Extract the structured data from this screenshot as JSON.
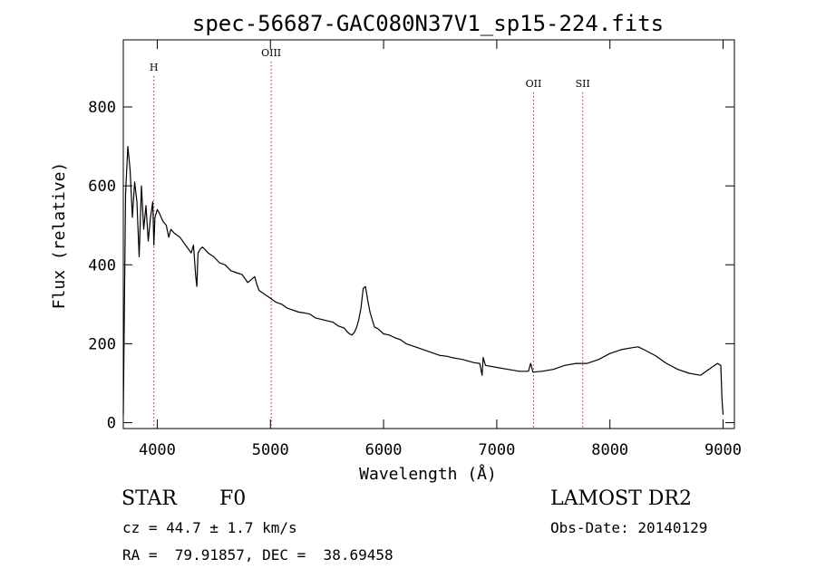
{
  "chart_data": {
    "type": "line",
    "title": "spec-56687-GAC080N37V1_sp15-224.fits",
    "xlabel": "Wavelength (Å)",
    "ylabel": "Flux (relative)",
    "xlim": [
      3700,
      9100
    ],
    "ylim": [
      -15,
      970
    ],
    "x_ticks": [
      4000,
      5000,
      6000,
      7000,
      8000,
      9000
    ],
    "y_ticks": [
      0,
      200,
      400,
      600,
      800
    ],
    "grid": false,
    "line_color": "#000000",
    "marker_color": "#b22222",
    "lines": [
      {
        "label": "H",
        "wavelength": 3970
      },
      {
        "label": "OIII",
        "wavelength": 5007
      },
      {
        "label": "OII",
        "wavelength": 7325
      },
      {
        "label": "SII",
        "wavelength": 7760
      }
    ],
    "series": [
      {
        "x": [
          3700,
          3720,
          3740,
          3760,
          3780,
          3800,
          3820,
          3840,
          3860,
          3880,
          3900,
          3920,
          3940,
          3960,
          3970,
          3980,
          4000,
          4020,
          4050,
          4080,
          4101,
          4120,
          4150,
          4200,
          4250,
          4300,
          4320,
          4340,
          4350,
          4360,
          4380,
          4400,
          4450,
          4500,
          4550,
          4600,
          4650,
          4700,
          4750,
          4800,
          4861,
          4880,
          4900,
          4950,
          5000,
          5050,
          5100,
          5150,
          5200,
          5250,
          5300,
          5350,
          5400,
          5450,
          5500,
          5550,
          5600,
          5650,
          5680,
          5700,
          5720,
          5740,
          5760,
          5780,
          5800,
          5820,
          5840,
          5860,
          5880,
          5900,
          5920,
          5950,
          6000,
          6050,
          6100,
          6150,
          6200,
          6300,
          6400,
          6500,
          6563,
          6600,
          6700,
          6800,
          6850,
          6870,
          6880,
          6900,
          7000,
          7100,
          7200,
          7280,
          7300,
          7320,
          7400,
          7500,
          7600,
          7700,
          7800,
          7900,
          8000,
          8100,
          8200,
          8250,
          8300,
          8400,
          8500,
          8600,
          8700,
          8800,
          8900,
          8950,
          8980,
          8990,
          9000
        ],
        "y": [
          20,
          580,
          700,
          640,
          520,
          610,
          560,
          420,
          600,
          490,
          550,
          460,
          520,
          560,
          450,
          520,
          540,
          530,
          510,
          500,
          470,
          490,
          480,
          470,
          450,
          430,
          450,
          370,
          345,
          430,
          440,
          445,
          430,
          420,
          405,
          400,
          385,
          380,
          375,
          355,
          370,
          350,
          335,
          325,
          315,
          305,
          300,
          290,
          285,
          280,
          278,
          275,
          265,
          262,
          258,
          255,
          245,
          240,
          230,
          225,
          222,
          228,
          240,
          260,
          290,
          340,
          345,
          310,
          280,
          260,
          242,
          238,
          225,
          222,
          215,
          210,
          200,
          190,
          180,
          170,
          168,
          165,
          160,
          152,
          150,
          120,
          165,
          145,
          140,
          135,
          130,
          130,
          150,
          128,
          130,
          135,
          145,
          150,
          150,
          160,
          175,
          185,
          190,
          192,
          185,
          170,
          150,
          135,
          125,
          120,
          140,
          150,
          145,
          60,
          20
        ]
      }
    ]
  },
  "info": {
    "object_class": "STAR",
    "subclass": "F0",
    "survey": "LAMOST DR2",
    "redshift": "cz = 44.7 ± 1.7 km/s",
    "obs_date": "Obs-Date: 20140129",
    "coords": "RA =  79.91857, DEC =  38.69458"
  }
}
